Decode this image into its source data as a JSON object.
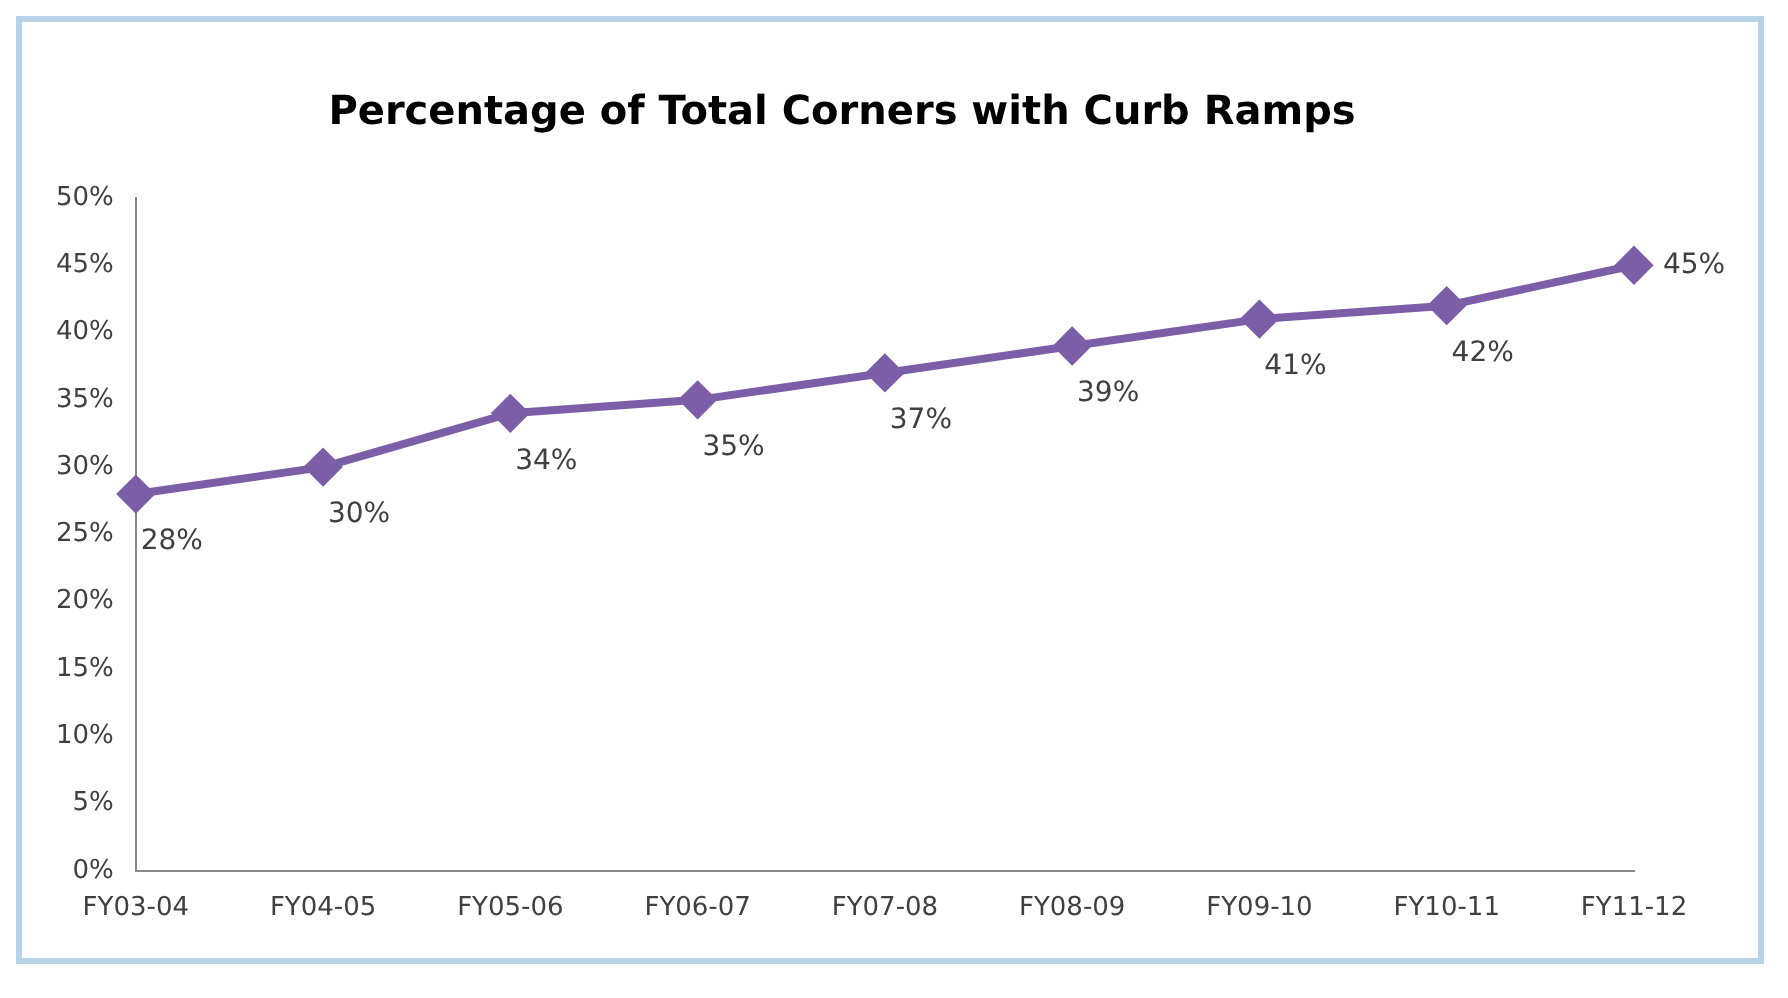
{
  "chart_data": {
    "type": "line",
    "title": "Percentage of Total Corners with Curb Ramps",
    "categories": [
      "FY03-04",
      "FY04-05",
      "FY05-06",
      "FY06-07",
      "FY07-08",
      "FY08-09",
      "FY09-10",
      "FY10-11",
      "FY11-12"
    ],
    "series": [
      {
        "color": "#7b5ea7",
        "values": [
          28,
          30,
          34,
          35,
          37,
          39,
          41,
          42,
          45
        ],
        "value_labels": [
          "28%",
          "30%",
          "34%",
          "35%",
          "37%",
          "39%",
          "41%",
          "42%",
          "45%"
        ]
      }
    ],
    "ylim": [
      0,
      50
    ],
    "yticks": [
      {
        "value": 0,
        "label": "0%"
      },
      {
        "value": 5,
        "label": "5%"
      },
      {
        "value": 10,
        "label": "10%"
      },
      {
        "value": 15,
        "label": "15%"
      },
      {
        "value": 20,
        "label": "20%"
      },
      {
        "value": 25,
        "label": "25%"
      },
      {
        "value": 30,
        "label": "30%"
      },
      {
        "value": 35,
        "label": "35%"
      },
      {
        "value": 40,
        "label": "40%"
      },
      {
        "value": 45,
        "label": "45%"
      },
      {
        "value": 50,
        "label": "50%"
      }
    ],
    "grid": false,
    "legend": false,
    "marker": "diamond",
    "line_style": "solid"
  }
}
